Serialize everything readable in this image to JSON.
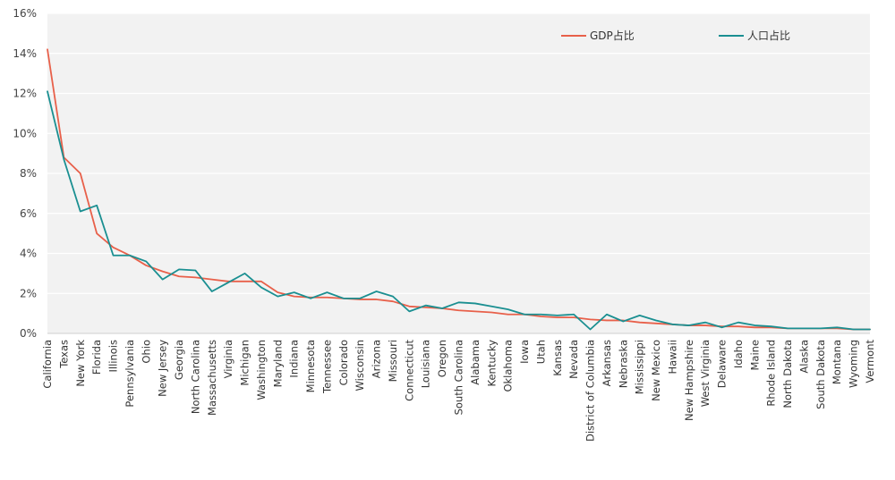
{
  "chart_data": {
    "type": "line",
    "title": "",
    "xlabel": "",
    "ylabel": "",
    "ylim": [
      0,
      16
    ],
    "yticks": [
      0,
      2,
      4,
      6,
      8,
      10,
      12,
      14,
      16
    ],
    "ytick_labels": [
      "0%",
      "2%",
      "4%",
      "6%",
      "8%",
      "10%",
      "12%",
      "14%",
      "16%"
    ],
    "grid": "horizontal",
    "legend_position": "top-right",
    "categories": [
      "California",
      "Texas",
      "New York",
      "Florida",
      "Illinois",
      "Pennsylvania",
      "Ohio",
      "New Jersey",
      "Georgia",
      "North Carolina",
      "Massachusetts",
      "Virginia",
      "Michigan",
      "Washington",
      "Maryland",
      "Indiana",
      "Minnesota",
      "Tennessee",
      "Colorado",
      "Wisconsin",
      "Arizona",
      "Missouri",
      "Connecticut",
      "Louisiana",
      "Oregon",
      "South Carolina",
      "Alabama",
      "Kentucky",
      "Oklahoma",
      "Iowa",
      "Utah",
      "Kansas",
      "Nevada",
      "District of Columbia",
      "Arkansas",
      "Nebraska",
      "Mississippi",
      "New Mexico",
      "Hawaii",
      "New Hampshire",
      "West Virginia",
      "Delaware",
      "Idaho",
      "Maine",
      "Rhode Island",
      "North Dakota",
      "Alaska",
      "South Dakota",
      "Montana",
      "Wyoming",
      "Vermont"
    ],
    "series": [
      {
        "name": "GDP占比",
        "color": "#e8604a",
        "values": [
          14.2,
          8.8,
          8.0,
          5.0,
          4.3,
          3.9,
          3.4,
          3.1,
          2.85,
          2.8,
          2.7,
          2.6,
          2.6,
          2.6,
          2.05,
          1.85,
          1.8,
          1.8,
          1.75,
          1.7,
          1.7,
          1.6,
          1.35,
          1.3,
          1.25,
          1.15,
          1.1,
          1.05,
          0.95,
          0.95,
          0.85,
          0.8,
          0.8,
          0.7,
          0.65,
          0.65,
          0.55,
          0.5,
          0.45,
          0.4,
          0.4,
          0.35,
          0.35,
          0.3,
          0.3,
          0.25,
          0.25,
          0.25,
          0.25,
          0.2,
          0.2
        ]
      },
      {
        "name": "人口占比",
        "color": "#1a8f91",
        "values": [
          12.1,
          8.7,
          6.1,
          6.4,
          3.9,
          3.9,
          3.6,
          2.7,
          3.2,
          3.15,
          2.1,
          2.55,
          3.0,
          2.3,
          1.85,
          2.05,
          1.75,
          2.05,
          1.75,
          1.75,
          2.1,
          1.85,
          1.1,
          1.4,
          1.25,
          1.55,
          1.5,
          1.35,
          1.2,
          0.95,
          0.95,
          0.9,
          0.95,
          0.2,
          0.95,
          0.6,
          0.9,
          0.65,
          0.45,
          0.4,
          0.55,
          0.3,
          0.55,
          0.4,
          0.35,
          0.25,
          0.25,
          0.25,
          0.3,
          0.2,
          0.2
        ]
      }
    ]
  }
}
